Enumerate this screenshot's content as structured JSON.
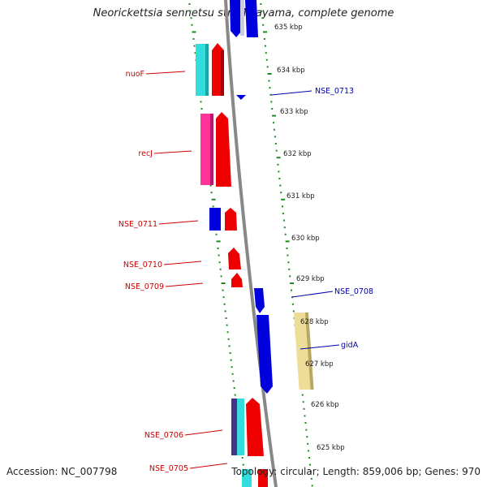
{
  "title": "Neorickettsia sennetsu str. Miyayama, complete genome",
  "footer": {
    "accession": "Accession: NC_007798",
    "summary": "Topology: circular; Length: 859,006 bp; Genes: 970"
  },
  "colors": {
    "forward_strand": "#0000dd",
    "reverse_strand": "#ee0000",
    "backbone": "#888888",
    "tick": "#228822",
    "cyan_feature": "#33dddd",
    "pink_feature": "#ff3399",
    "yellow_feature": "#eedd99",
    "purple_feature": "#443388"
  },
  "scale_labels": [
    "635 kbp",
    "634 kbp",
    "633 kbp",
    "632 kbp",
    "631 kbp",
    "630 kbp",
    "629 kbp",
    "628 kbp",
    "627 kbp",
    "626 kbp",
    "625 kbp"
  ],
  "gene_labels": [
    {
      "text": "nuoF",
      "side": "left"
    },
    {
      "text": "NSE_0713",
      "side": "right"
    },
    {
      "text": "recJ",
      "side": "left"
    },
    {
      "text": "NSE_0711",
      "side": "left"
    },
    {
      "text": "NSE_0710",
      "side": "left"
    },
    {
      "text": "NSE_0709",
      "side": "left"
    },
    {
      "text": "NSE_0708",
      "side": "right"
    },
    {
      "text": "gidA",
      "side": "right"
    },
    {
      "text": "NSE_0706",
      "side": "left"
    },
    {
      "text": "NSE_0705",
      "side": "left"
    }
  ]
}
